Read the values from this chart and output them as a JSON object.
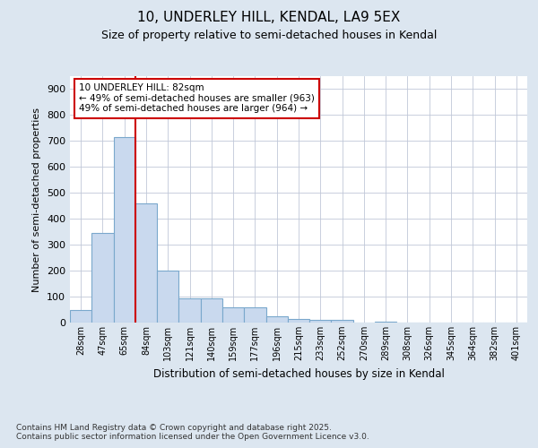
{
  "title": "10, UNDERLEY HILL, KENDAL, LA9 5EX",
  "subtitle": "Size of property relative to semi-detached houses in Kendal",
  "xlabel": "Distribution of semi-detached houses by size in Kendal",
  "ylabel": "Number of semi-detached properties",
  "bin_labels": [
    "28sqm",
    "47sqm",
    "65sqm",
    "84sqm",
    "103sqm",
    "121sqm",
    "140sqm",
    "159sqm",
    "177sqm",
    "196sqm",
    "215sqm",
    "233sqm",
    "252sqm",
    "270sqm",
    "289sqm",
    "308sqm",
    "326sqm",
    "345sqm",
    "364sqm",
    "382sqm",
    "401sqm"
  ],
  "bar_heights": [
    47,
    345,
    715,
    460,
    200,
    93,
    93,
    60,
    60,
    25,
    15,
    12,
    10,
    0,
    5,
    0,
    0,
    0,
    0,
    0,
    0
  ],
  "bar_color": "#c9d9ee",
  "bar_edge_color": "#7aa8cc",
  "vline_color": "#cc0000",
  "annotation_text": "10 UNDERLEY HILL: 82sqm\n← 49% of semi-detached houses are smaller (963)\n49% of semi-detached houses are larger (964) →",
  "annotation_box_color": "#ffffff",
  "annotation_box_edge": "#cc0000",
  "ylim": [
    0,
    950
  ],
  "yticks": [
    0,
    100,
    200,
    300,
    400,
    500,
    600,
    700,
    800,
    900
  ],
  "background_color": "#dce6f0",
  "plot_background": "#ffffff",
  "footer_text": "Contains HM Land Registry data © Crown copyright and database right 2025.\nContains public sector information licensed under the Open Government Licence v3.0.",
  "figsize": [
    6.0,
    5.0
  ],
  "dpi": 100
}
